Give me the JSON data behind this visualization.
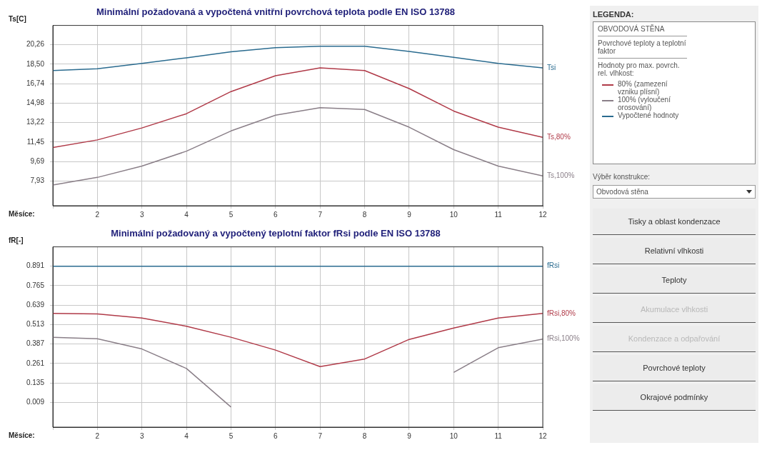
{
  "chart_data": [
    {
      "type": "line",
      "title": "Minimální požadovaná a vypočtená vnitřní povrchová teplota podle EN ISO 13788",
      "xlabel": "Měsíce:",
      "ylabel": "Ts[C]",
      "x": [
        1,
        2,
        3,
        4,
        5,
        6,
        7,
        8,
        9,
        10,
        11,
        12
      ],
      "xlim": [
        1,
        12
      ],
      "xticks": [
        {
          "value": 1,
          "label": null
        },
        2,
        3,
        4,
        5,
        6,
        7,
        8,
        9,
        10,
        11,
        12
      ],
      "ylim": [
        5.7,
        22.0
      ],
      "yticks": [
        {
          "value": 7.93,
          "label": "7,93"
        },
        {
          "value": 9.69,
          "label": "9,69"
        },
        {
          "value": 11.45,
          "label": "11,45"
        },
        {
          "value": 13.22,
          "label": "13,22"
        },
        {
          "value": 14.98,
          "label": "14,98"
        },
        {
          "value": 16.74,
          "label": "16,74"
        },
        {
          "value": 18.5,
          "label": "18,50"
        },
        {
          "value": 20.26,
          "label": "20,26"
        }
      ],
      "grid": true,
      "marker": "none",
      "line_style": "solid",
      "series": [
        {
          "name": "Tsi",
          "color": "#2a6b8f",
          "values": [
            17.92,
            18.09,
            18.56,
            19.07,
            19.62,
            19.99,
            20.12,
            20.12,
            19.65,
            19.11,
            18.56,
            18.16
          ]
        },
        {
          "name": "Ts,80%",
          "color": "#b03a48",
          "values": [
            10.97,
            11.65,
            12.73,
            14.02,
            16.02,
            17.45,
            18.16,
            17.92,
            16.29,
            14.26,
            12.8,
            11.89
          ]
        },
        {
          "name": "Ts,100%",
          "color": "#8a7f88",
          "values": [
            7.58,
            8.26,
            9.28,
            10.63,
            12.46,
            13.89,
            14.57,
            14.4,
            12.8,
            10.77,
            9.28,
            8.4
          ]
        }
      ]
    },
    {
      "type": "line",
      "title": "Minimální požadovaný a vypočtený teplotní faktor fRsi podle EN ISO 13788",
      "xlabel": "Měsíce:",
      "ylabel": "fR[-]",
      "x": [
        1,
        2,
        3,
        4,
        5,
        6,
        7,
        8,
        9,
        10,
        11,
        12
      ],
      "xlim": [
        1,
        12
      ],
      "xticks": [
        {
          "value": 1,
          "label": null
        },
        2,
        3,
        4,
        5,
        6,
        7,
        8,
        9,
        10,
        11,
        12
      ],
      "ylim": [
        -0.15,
        1.015
      ],
      "yticks": [
        {
          "value": 0.009,
          "label": "0.009"
        },
        {
          "value": 0.135,
          "label": "0.135"
        },
        {
          "value": 0.261,
          "label": "0.261"
        },
        {
          "value": 0.387,
          "label": "0.387"
        },
        {
          "value": 0.513,
          "label": "0.513"
        },
        {
          "value": 0.639,
          "label": "0.639"
        },
        {
          "value": 0.765,
          "label": "0.765"
        },
        {
          "value": 0.891,
          "label": "0.891"
        }
      ],
      "grid": true,
      "marker": "none",
      "line_style": "solid",
      "series": [
        {
          "name": "fRsi",
          "color": "#2a6b8f",
          "values": [
            0.89,
            0.89,
            0.89,
            0.89,
            0.89,
            0.89,
            0.89,
            0.89,
            0.89,
            0.89,
            0.89,
            0.89
          ]
        },
        {
          "name": "fRsi,80%",
          "color": "#b03a48",
          "values": [
            0.585,
            0.582,
            0.555,
            0.502,
            0.431,
            0.348,
            0.241,
            0.29,
            0.417,
            0.49,
            0.555,
            0.585
          ]
        },
        {
          "name": "fRsi,100%",
          "color": "#8a7f88",
          "values": [
            0.431,
            0.421,
            0.355,
            0.229,
            -0.02,
            null,
            null,
            null,
            null,
            0.204,
            0.363,
            0.419
          ]
        }
      ]
    },
    {
      "type": "other",
      "title": "LEGENDA:",
      "annotations": [
        "OBVODOVÁ STĚNA",
        "Povrchové teploty a teplotní faktor",
        "Hodnoty pro max. povrch. rel. vlhkost:",
        "80% (zamezení vzniku plísní)",
        "100% (vyloučení orosování)",
        "Vypočtené hodnoty",
        "Výběr konstrukce:",
        "Obvodová stěna",
        "Tisky a oblast kondenzace",
        "Relativní vlhkosti",
        "Teploty",
        "Akumulace vlhkosti",
        "Kondenzace a odpařování",
        "Povrchové teploty",
        "Okrajové podmínky"
      ]
    }
  ]
}
